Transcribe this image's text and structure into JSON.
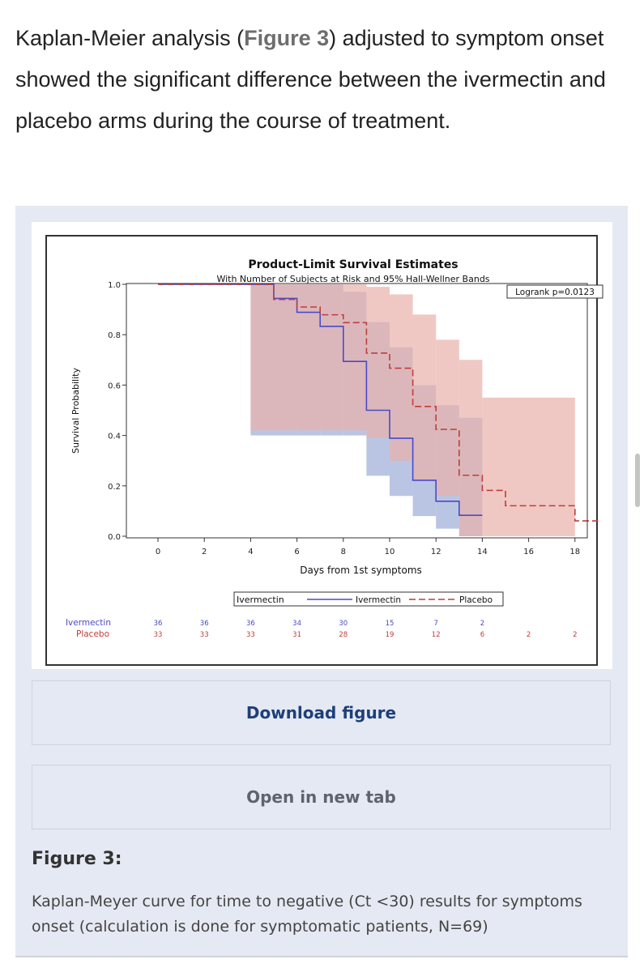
{
  "intro": {
    "before": "Kaplan-Meier analysis (",
    "link": "Figure 3",
    "after": ") adjusted to symptom onset showed the significant difference between the ivermectin and placebo arms during the course of treatment."
  },
  "buttons": {
    "download": "Download figure",
    "open_new_tab": "Open in new tab"
  },
  "figure_label": "Figure 3:",
  "figure_caption": "Kaplan-Meyer curve for time to negative (Ct <30) results for symptoms onset (calculation is done for symptomatic patients, N=69)",
  "colors": {
    "ivermectin_line": "#4a4ac8",
    "placebo_line": "#c03c3c",
    "ivermectin_band": "#a9b7dc",
    "placebo_band": "#e9b0aa",
    "overlap_band": "#c3a0a8"
  },
  "chart_data": {
    "type": "line",
    "title": "Product-Limit Survival Estimates",
    "subtitle": "With Number of Subjects at Risk and 95% Hall-Wellner Bands",
    "xlabel": "Days from 1st symptoms",
    "ylabel": "Survival Probability",
    "xlim": [
      -2,
      19
    ],
    "ylim": [
      0,
      1
    ],
    "x_ticks": [
      0,
      2,
      4,
      6,
      8,
      10,
      12,
      14,
      16,
      18
    ],
    "y_ticks": [
      0.0,
      0.2,
      0.4,
      0.6,
      0.8,
      1.0
    ],
    "y_tick_labels": [
      "0.0",
      "0.2",
      "0.4",
      "0.6",
      "0.8",
      "1.0"
    ],
    "annotation": "Logrank p=0.0123",
    "legend": {
      "label": "Ivermectin",
      "entries": [
        "Ivermectin",
        "Placebo"
      ],
      "placement": "bottom"
    },
    "series": [
      {
        "name": "Ivermectin",
        "style": "solid",
        "steps": [
          [
            0,
            1.0
          ],
          [
            5,
            0.944
          ],
          [
            6,
            0.889
          ],
          [
            7,
            0.833
          ],
          [
            8,
            0.694
          ],
          [
            9,
            0.5
          ],
          [
            10,
            0.389
          ],
          [
            11,
            0.222
          ],
          [
            12,
            0.139
          ],
          [
            13,
            0.083
          ],
          [
            14,
            0.083
          ]
        ],
        "band": [
          [
            0,
            1.0,
            1.0
          ],
          [
            4,
            0.4,
            1.0
          ],
          [
            5,
            0.4,
            1.0
          ],
          [
            6,
            0.4,
            1.0
          ],
          [
            7,
            0.4,
            1.0
          ],
          [
            8,
            0.4,
            0.97
          ],
          [
            9,
            0.24,
            0.85
          ],
          [
            10,
            0.16,
            0.75
          ],
          [
            11,
            0.08,
            0.6
          ],
          [
            12,
            0.03,
            0.52
          ],
          [
            13,
            0.0,
            0.47
          ],
          [
            14,
            0.0,
            0.47
          ]
        ]
      },
      {
        "name": "Placebo",
        "style": "dashed",
        "steps": [
          [
            0,
            1.0
          ],
          [
            5,
            0.94
          ],
          [
            6,
            0.91
          ],
          [
            7,
            0.879
          ],
          [
            8,
            0.848
          ],
          [
            9,
            0.727
          ],
          [
            10,
            0.667
          ],
          [
            11,
            0.515
          ],
          [
            12,
            0.424
          ],
          [
            13,
            0.242
          ],
          [
            14,
            0.182
          ],
          [
            15,
            0.121
          ],
          [
            16,
            0.121
          ],
          [
            18,
            0.061
          ],
          [
            19,
            0.061
          ]
        ],
        "band": [
          [
            0,
            1.0,
            1.0
          ],
          [
            4,
            0.42,
            1.0
          ],
          [
            5,
            0.42,
            1.0
          ],
          [
            6,
            0.42,
            1.0
          ],
          [
            7,
            0.42,
            1.0
          ],
          [
            8,
            0.42,
            1.0
          ],
          [
            9,
            0.39,
            0.99
          ],
          [
            10,
            0.3,
            0.96
          ],
          [
            11,
            0.22,
            0.88
          ],
          [
            12,
            0.16,
            0.78
          ],
          [
            13,
            0.0,
            0.7
          ],
          [
            14,
            0.0,
            0.55
          ],
          [
            18,
            0.0,
            0.55
          ]
        ]
      }
    ],
    "at_risk": {
      "labels": [
        "Ivermectin",
        "Placebo"
      ],
      "x": [
        0,
        2,
        4,
        6,
        8,
        10,
        12,
        14,
        16,
        18
      ],
      "ivermectin": [
        "36",
        "36",
        "36",
        "34",
        "30",
        "15",
        "7",
        "2",
        "",
        ""
      ],
      "placebo": [
        "33",
        "33",
        "33",
        "31",
        "28",
        "19",
        "12",
        "6",
        "2",
        "2"
      ]
    }
  }
}
